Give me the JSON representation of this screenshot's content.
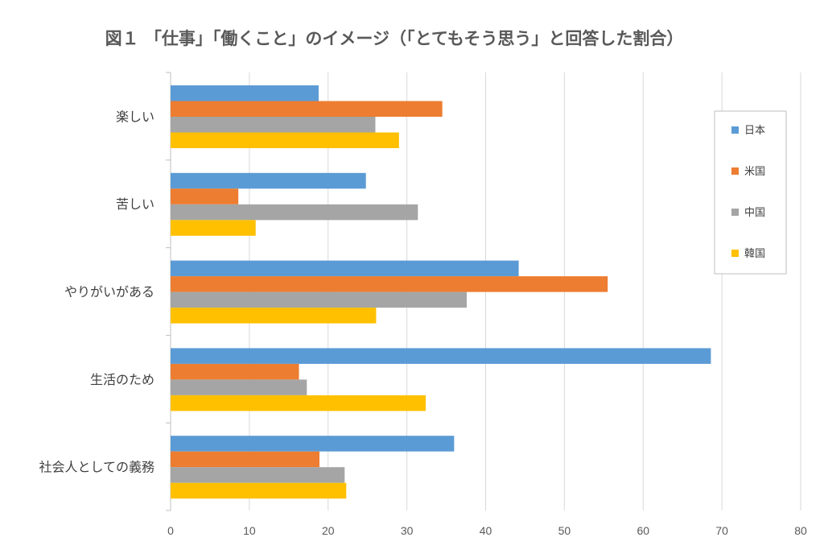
{
  "chart_data": {
    "type": "bar",
    "orientation": "horizontal",
    "title": "図１ 「仕事」「働くこと」のイメージ（「とてもそう思う」と回答した割合）",
    "categories": [
      "楽しい",
      "苦しい",
      "やりがいがある",
      "生活のため",
      "社会人としての義務"
    ],
    "series": [
      {
        "name": "日本",
        "color": "#5B9BD5",
        "values": [
          18.8,
          24.8,
          44.2,
          68.6,
          36.0
        ]
      },
      {
        "name": "米国",
        "color": "#ED7D31",
        "values": [
          34.5,
          8.6,
          55.5,
          16.3,
          18.9
        ]
      },
      {
        "name": "中国",
        "color": "#A5A5A5",
        "values": [
          26.0,
          31.4,
          37.6,
          17.3,
          22.1
        ]
      },
      {
        "name": "韓国",
        "color": "#FFC000",
        "values": [
          29.0,
          10.8,
          26.1,
          32.4,
          22.3
        ]
      }
    ],
    "xlim": [
      0,
      80
    ],
    "xticks": [
      0,
      10,
      20,
      30,
      40,
      50,
      60,
      70,
      80
    ],
    "grid": true,
    "legend_position": "right"
  }
}
